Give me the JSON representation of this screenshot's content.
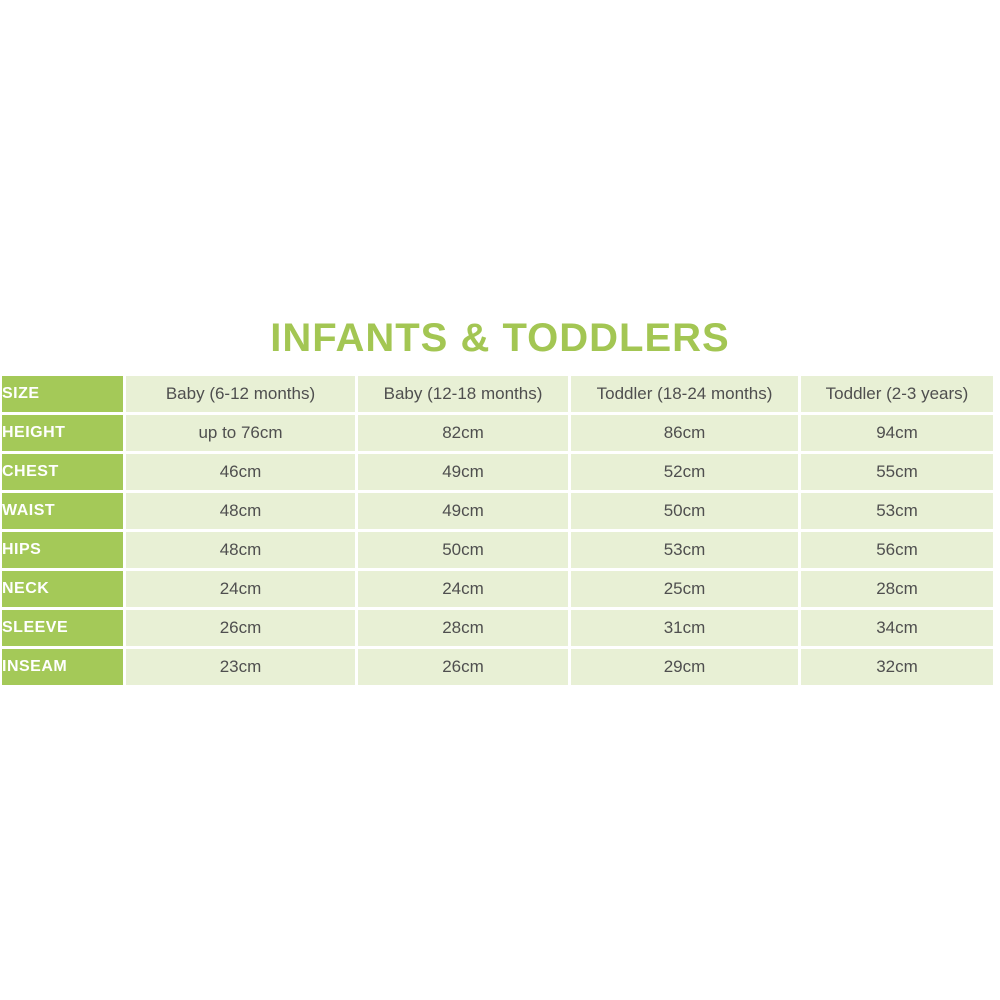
{
  "title": "INFANTS & TODDLERS",
  "colors": {
    "title_green": "#a3c653",
    "label_cell_green": "#a4c958",
    "data_cell_green": "#e8f0d5",
    "label_text": "#ffffff",
    "data_text": "#4f4f4f",
    "page_background": "#ffffff"
  },
  "table": {
    "corner_label": "SIZE",
    "columns": [
      "Baby (6-12 months)",
      "Baby (12-18 months)",
      "Toddler (18-24 months)",
      "Toddler (2-3 years)"
    ],
    "rows": [
      {
        "label": "HEIGHT",
        "values": [
          "up to 76cm",
          "82cm",
          "86cm",
          "94cm"
        ]
      },
      {
        "label": "CHEST",
        "values": [
          "46cm",
          "49cm",
          "52cm",
          "55cm"
        ]
      },
      {
        "label": "WAIST",
        "values": [
          "48cm",
          "49cm",
          "50cm",
          "53cm"
        ]
      },
      {
        "label": "HIPS",
        "values": [
          "48cm",
          "50cm",
          "53cm",
          "56cm"
        ]
      },
      {
        "label": "NECK",
        "values": [
          "24cm",
          "24cm",
          "25cm",
          "28cm"
        ]
      },
      {
        "label": "SLEEVE",
        "values": [
          "26cm",
          "28cm",
          "31cm",
          "34cm"
        ]
      },
      {
        "label": "INSEAM",
        "values": [
          "23cm",
          "26cm",
          "29cm",
          "32cm"
        ]
      }
    ]
  },
  "chart_data": {
    "type": "table",
    "title": "INFANTS & TODDLERS",
    "columns": [
      "SIZE",
      "Baby (6-12 months)",
      "Baby (12-18 months)",
      "Toddler (18-24 months)",
      "Toddler (2-3 years)"
    ],
    "rows": [
      [
        "HEIGHT",
        "up to 76cm",
        "82cm",
        "86cm",
        "94cm"
      ],
      [
        "CHEST",
        "46cm",
        "49cm",
        "52cm",
        "55cm"
      ],
      [
        "WAIST",
        "48cm",
        "49cm",
        "50cm",
        "53cm"
      ],
      [
        "HIPS",
        "48cm",
        "50cm",
        "53cm",
        "56cm"
      ],
      [
        "NECK",
        "24cm",
        "24cm",
        "25cm",
        "28cm"
      ],
      [
        "SLEEVE",
        "26cm",
        "28cm",
        "31cm",
        "34cm"
      ],
      [
        "INSEAM",
        "23cm",
        "26cm",
        "29cm",
        "32cm"
      ]
    ]
  }
}
